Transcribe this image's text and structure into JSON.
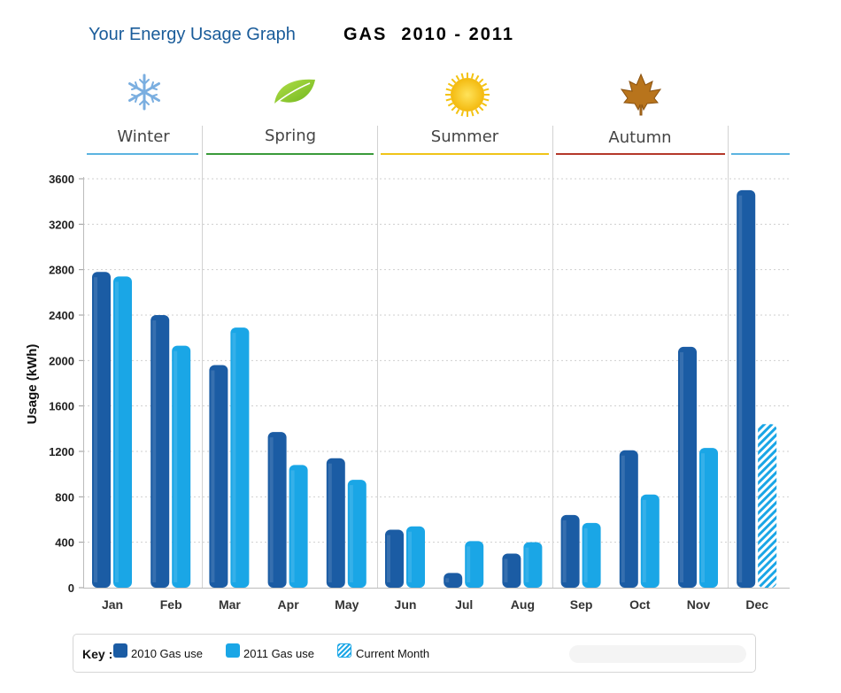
{
  "header": {
    "title": "Your Energy Usage Graph",
    "fuel": "GAS",
    "period_start": "2010",
    "period_sep": "-",
    "period_end": "2011"
  },
  "seasons": [
    {
      "label": "Winter",
      "icon": "snowflake-icon",
      "color": "#5bb4e0"
    },
    {
      "label": "Spring",
      "icon": "leaf-icon",
      "color": "#3a9a3a"
    },
    {
      "label": "Summer",
      "icon": "sun-icon",
      "color": "#f0c418"
    },
    {
      "label": "Autumn",
      "icon": "maple-leaf-icon",
      "color": "#b5382a"
    }
  ],
  "key": {
    "title": "Key :",
    "items": [
      {
        "label": "2010 Gas use",
        "color": "#1b5ca4",
        "pattern": "solid"
      },
      {
        "label": "2011 Gas use",
        "color": "#1aa6e6",
        "pattern": "solid"
      },
      {
        "label": "Current Month",
        "color": "#1aa6e6",
        "pattern": "hatched"
      }
    ]
  },
  "chart_data": {
    "type": "bar",
    "categories": [
      "Jan",
      "Feb",
      "Mar",
      "Apr",
      "May",
      "Jun",
      "Jul",
      "Aug",
      "Sep",
      "Oct",
      "Nov",
      "Dec"
    ],
    "series": [
      {
        "name": "2010 Gas use",
        "color": "#1b5ca4",
        "values": [
          2780,
          2400,
          1960,
          1370,
          1140,
          510,
          130,
          300,
          640,
          1210,
          2120,
          3500
        ]
      },
      {
        "name": "2011 Gas use",
        "color": "#1aa6e6",
        "values": [
          2740,
          2130,
          2290,
          1080,
          950,
          540,
          410,
          400,
          570,
          820,
          1230,
          1440
        ]
      }
    ],
    "current_month_index": 11,
    "ylabel": "Usage (kWh)",
    "xlabel": "",
    "ylim": [
      0,
      3600
    ],
    "yticks": [
      0,
      400,
      800,
      1200,
      1600,
      2000,
      2400,
      2800,
      3200,
      3600
    ],
    "grid": true,
    "legend": "bottom"
  }
}
